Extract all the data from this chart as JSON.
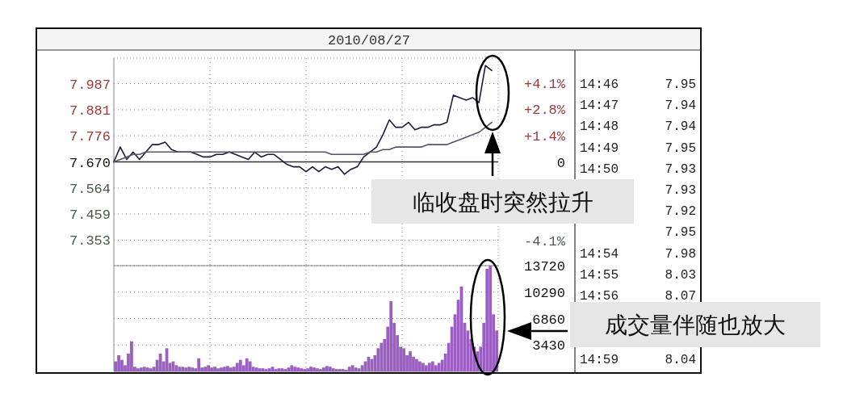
{
  "chart_data": [
    {
      "type": "line",
      "title": "2010/08/27",
      "categories": [
        null,
        null,
        null,
        null,
        null,
        null,
        null,
        null,
        null,
        null,
        null,
        null,
        null,
        null,
        null,
        null,
        null,
        null,
        null,
        null,
        null,
        null,
        null,
        null,
        null,
        null,
        null,
        null,
        null,
        null,
        null,
        null,
        null,
        null,
        null,
        null,
        null,
        null,
        null,
        null,
        null,
        null,
        null,
        null,
        null,
        null,
        null,
        null,
        null,
        null,
        null,
        null,
        null,
        null,
        null,
        null,
        null,
        null,
        null,
        null
      ],
      "series": [
        {
          "color": "#1c1c40",
          "values": [
            7.67,
            7.73,
            7.68,
            7.71,
            7.68,
            7.71,
            7.74,
            7.74,
            7.75,
            7.72,
            7.71,
            7.71,
            7.71,
            7.7,
            7.69,
            7.69,
            7.7,
            7.7,
            7.71,
            7.7,
            7.69,
            7.68,
            7.71,
            7.69,
            7.7,
            7.7,
            7.68,
            7.66,
            7.65,
            7.65,
            7.63,
            7.65,
            7.63,
            7.65,
            7.64,
            7.65,
            7.62,
            7.64,
            7.65,
            7.69,
            7.71,
            7.73,
            7.78,
            7.84,
            7.81,
            7.81,
            7.83,
            7.8,
            7.81,
            7.81,
            7.82,
            7.82,
            7.83,
            7.94,
            7.93,
            7.92,
            7.93,
            7.91,
            8.06,
            8.04
          ]
        },
        {
          "color": "#55556a",
          "values": [
            7.67,
            7.68,
            7.69,
            7.7,
            7.7,
            7.71,
            7.71,
            7.71,
            7.71,
            7.71,
            7.71,
            7.71,
            7.71,
            7.71,
            7.71,
            7.71,
            7.71,
            7.71,
            7.71,
            7.71,
            7.71,
            7.71,
            7.71,
            7.71,
            7.71,
            7.71,
            7.71,
            7.71,
            7.71,
            7.71,
            7.71,
            7.71,
            7.71,
            7.71,
            7.7,
            7.7,
            7.7,
            7.7,
            7.7,
            7.7,
            7.71,
            7.71,
            7.72,
            7.72,
            7.73,
            7.73,
            7.73,
            7.73,
            7.73,
            7.74,
            7.74,
            7.74,
            7.74,
            7.75,
            7.76,
            7.77,
            7.78,
            7.79,
            7.81,
            7.83
          ]
        }
      ],
      "ylim": [
        7.25,
        8.09
      ],
      "yticks": [
        7.353,
        7.459,
        7.564,
        {
          "value": 7.67,
          "label": "7.670"
        },
        7.776,
        7.881,
        7.987
      ],
      "y2lim": [
        -5.45,
        5.45
      ],
      "y2ticks": [
        {
          "value": 4.13,
          "label": "+4.1%"
        },
        {
          "value": 2.76,
          "label": "+2.8%"
        },
        {
          "value": 1.38,
          "label": "+1.4%"
        },
        {
          "value": 0,
          "label": "0"
        },
        {
          "value": -4.13,
          "label": "-4.1%"
        }
      ],
      "ref_lines": [
        {
          "axis": "y",
          "value": 7.67,
          "color": "#333333"
        }
      ],
      "grid": true,
      "annotations": [
        "临收盘时突然拉升"
      ]
    },
    {
      "type": "bar",
      "categories": [
        null,
        null,
        null,
        null,
        null,
        null,
        null,
        null,
        null,
        null,
        null,
        null,
        null,
        null,
        null,
        null,
        null,
        null,
        null,
        null,
        null,
        null,
        null,
        null,
        null,
        null,
        null,
        null,
        null,
        null,
        null,
        null,
        null,
        null,
        null,
        null,
        null,
        null,
        null,
        null,
        null,
        null,
        null,
        null,
        null,
        null,
        null,
        null,
        null,
        null,
        null,
        null,
        null,
        null,
        null,
        null,
        null,
        null,
        null,
        null,
        null,
        null,
        null,
        null,
        null,
        null,
        null,
        null,
        null,
        null,
        null,
        null,
        null,
        null,
        null,
        null,
        null,
        null,
        null,
        null,
        null,
        null,
        null,
        null,
        null,
        null,
        null,
        null,
        null,
        null,
        null,
        null,
        null,
        null,
        null,
        null,
        null,
        null,
        null,
        null,
        null,
        null,
        null,
        null,
        null,
        null,
        null,
        null,
        null,
        null,
        null,
        null,
        null,
        null,
        null,
        null,
        null,
        null,
        null,
        null
      ],
      "values": [
        1300,
        2100,
        1500,
        800,
        2300,
        3900,
        600,
        400,
        500,
        600,
        500,
        400,
        600,
        1500,
        2300,
        1300,
        3000,
        1100,
        1300,
        800,
        600,
        600,
        500,
        600,
        500,
        400,
        1700,
        500,
        600,
        800,
        500,
        600,
        400,
        500,
        600,
        700,
        500,
        600,
        1100,
        1500,
        800,
        1700,
        1300,
        600,
        500,
        400,
        400,
        300,
        400,
        600,
        300,
        400,
        400,
        300,
        500,
        800,
        600,
        500,
        400,
        300,
        400,
        600,
        500,
        400,
        300,
        500,
        700,
        600,
        400,
        300,
        300,
        300,
        200,
        600,
        800,
        500,
        400,
        800,
        1300,
        1900,
        1600,
        2100,
        3000,
        3700,
        4200,
        5800,
        9100,
        6300,
        4700,
        3200,
        3000,
        2100,
        2600,
        1900,
        1600,
        1300,
        1100,
        800,
        1100,
        1300,
        800,
        1100,
        1500,
        2300,
        3700,
        5800,
        7400,
        9300,
        11000,
        6300,
        5300,
        4200,
        3200,
        2600,
        3200,
        6300,
        13300,
        13700,
        7400,
        5300
      ],
      "color": "#9a5fc0",
      "ylim": [
        0,
        13720
      ],
      "yticks": [
        3430,
        6860,
        10290,
        13720
      ],
      "grid": true,
      "annotations": [
        "成交量伴随也放大"
      ]
    },
    {
      "type": "other",
      "annotations": [
        "14:46      7.95",
        "14:47      7.94",
        "14:48      7.94",
        "14:49      7.95",
        "14:50      7.93",
        "7.93",
        "7.92",
        "7.95",
        "14:54      7.98",
        "14:55      8.03",
        "14:56      8.07",
        "14:59      8.04"
      ]
    }
  ]
}
